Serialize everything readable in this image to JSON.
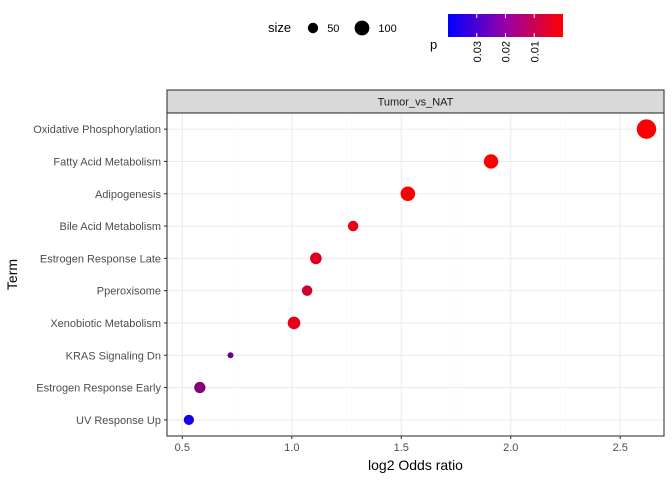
{
  "chart_data": {
    "type": "scatter",
    "title": "",
    "facet_label": "Tumor_vs_NAT",
    "xlabel": "log2 Odds ratio",
    "ylabel": "Term",
    "xlim": [
      0.43,
      2.7
    ],
    "x_ticks": [
      0.5,
      1.0,
      1.5,
      2.0,
      2.5
    ],
    "x_tick_labels": [
      "0.5",
      "1.0",
      "1.5",
      "2.0",
      "2.5"
    ],
    "grid": true,
    "categories": [
      "Oxidative Phosphorylation",
      "Fatty Acid Metabolism",
      "Adipogenesis",
      "Bile Acid Metabolism",
      "Estrogen Response Late",
      "Pperoxisome",
      "Xenobiotic Metabolism",
      "KRAS Signaling Dn",
      "Estrogen Response Early",
      "UV Response Up"
    ],
    "points": [
      {
        "term": "Oxidative Phosphorylation",
        "x": 2.62,
        "size": 115,
        "p": 0.0001
      },
      {
        "term": "Fatty Acid Metabolism",
        "x": 1.91,
        "size": 60,
        "p": 0.0005
      },
      {
        "term": "Adipogenesis",
        "x": 1.53,
        "size": 62,
        "p": 0.001
      },
      {
        "term": "Bile Acid Metabolism",
        "x": 1.28,
        "size": 30,
        "p": 0.003
      },
      {
        "term": "Estrogen Response Late",
        "x": 1.11,
        "size": 38,
        "p": 0.005
      },
      {
        "term": "Pperoxisome",
        "x": 1.07,
        "size": 30,
        "p": 0.007
      },
      {
        "term": "Xenobiotic Metabolism",
        "x": 1.01,
        "size": 45,
        "p": 0.004
      },
      {
        "term": "KRAS Signaling Dn",
        "x": 0.72,
        "size": 8,
        "p": 0.024
      },
      {
        "term": "Estrogen Response Early",
        "x": 0.58,
        "size": 35,
        "p": 0.019
      },
      {
        "term": "UV Response Up",
        "x": 0.53,
        "size": 28,
        "p": 0.037
      }
    ],
    "size_legend": {
      "title": "size",
      "entries": [
        {
          "label": "50",
          "value": 50
        },
        {
          "label": "100",
          "value": 100
        }
      ]
    },
    "color_legend": {
      "title": "p",
      "range": [
        0.0,
        0.04
      ],
      "ticks": [
        0.03,
        0.02,
        0.01
      ],
      "tick_labels": [
        "0.03",
        "0.02",
        "0.01"
      ],
      "low_color": "#ff0000",
      "high_color": "#0000ff",
      "reverse": true
    },
    "colors": {
      "panel_border": "#333333",
      "strip_fill": "#d9d9d9",
      "background": "#ffffff"
    }
  }
}
